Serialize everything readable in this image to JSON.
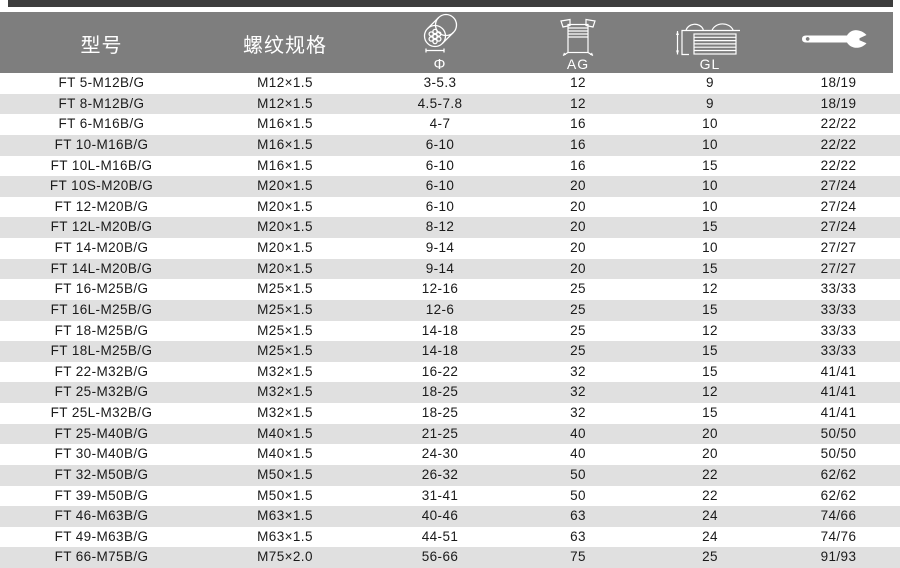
{
  "colors": {
    "header_bg": "#7e7e7e",
    "top_bar": "#3d3d3d",
    "stripe": "#e0e0e0",
    "row_text": "#1a1a1a",
    "header_text": "#ffffff"
  },
  "table": {
    "header": {
      "model": "型号",
      "thread": "螺纹规格",
      "clamp_symbol": "Φ",
      "ag": "AG",
      "gl": "GL",
      "icons": [
        "cable-diameter-icon",
        "gland-ag-icon",
        "gland-gl-icon",
        "wrench-icon"
      ]
    },
    "row_keys": [
      "model",
      "thread",
      "clamp",
      "ag",
      "gl",
      "wrench"
    ],
    "rows": [
      {
        "model": "FT 5-M12B/G",
        "thread": "M12×1.5",
        "clamp": "3-5.3",
        "ag": "12",
        "gl": "9",
        "wrench": "18/19"
      },
      {
        "model": "FT 8-M12B/G",
        "thread": "M12×1.5",
        "clamp": "4.5-7.8",
        "ag": "12",
        "gl": "9",
        "wrench": "18/19"
      },
      {
        "model": "FT 6-M16B/G",
        "thread": "M16×1.5",
        "clamp": "4-7",
        "ag": "16",
        "gl": "10",
        "wrench": "22/22"
      },
      {
        "model": "FT 10-M16B/G",
        "thread": "M16×1.5",
        "clamp": "6-10",
        "ag": "16",
        "gl": "10",
        "wrench": "22/22"
      },
      {
        "model": "FT 10L-M16B/G",
        "thread": "M16×1.5",
        "clamp": "6-10",
        "ag": "16",
        "gl": "15",
        "wrench": "22/22"
      },
      {
        "model": "FT 10S-M20B/G",
        "thread": "M20×1.5",
        "clamp": "6-10",
        "ag": "20",
        "gl": "10",
        "wrench": "27/24"
      },
      {
        "model": "FT 12-M20B/G",
        "thread": "M20×1.5",
        "clamp": "6-10",
        "ag": "20",
        "gl": "10",
        "wrench": "27/24"
      },
      {
        "model": "FT 12L-M20B/G",
        "thread": "M20×1.5",
        "clamp": "8-12",
        "ag": "20",
        "gl": "15",
        "wrench": "27/24"
      },
      {
        "model": "FT 14-M20B/G",
        "thread": "M20×1.5",
        "clamp": "9-14",
        "ag": "20",
        "gl": "10",
        "wrench": "27/27"
      },
      {
        "model": "FT 14L-M20B/G",
        "thread": "M20×1.5",
        "clamp": "9-14",
        "ag": "20",
        "gl": "15",
        "wrench": "27/27"
      },
      {
        "model": "FT 16-M25B/G",
        "thread": "M25×1.5",
        "clamp": "12-16",
        "ag": "25",
        "gl": "12",
        "wrench": "33/33"
      },
      {
        "model": "FT 16L-M25B/G",
        "thread": "M25×1.5",
        "clamp": "12-6",
        "ag": "25",
        "gl": "15",
        "wrench": "33/33"
      },
      {
        "model": "FT 18-M25B/G",
        "thread": "M25×1.5",
        "clamp": "14-18",
        "ag": "25",
        "gl": "12",
        "wrench": "33/33"
      },
      {
        "model": "FT 18L-M25B/G",
        "thread": "M25×1.5",
        "clamp": "14-18",
        "ag": "25",
        "gl": "15",
        "wrench": "33/33"
      },
      {
        "model": "FT 22-M32B/G",
        "thread": "M32×1.5",
        "clamp": "16-22",
        "ag": "32",
        "gl": "15",
        "wrench": "41/41"
      },
      {
        "model": "FT 25-M32B/G",
        "thread": "M32×1.5",
        "clamp": "18-25",
        "ag": "32",
        "gl": "12",
        "wrench": "41/41"
      },
      {
        "model": "FT 25L-M32B/G",
        "thread": "M32×1.5",
        "clamp": "18-25",
        "ag": "32",
        "gl": "15",
        "wrench": "41/41"
      },
      {
        "model": "FT 25-M40B/G",
        "thread": "M40×1.5",
        "clamp": "21-25",
        "ag": "40",
        "gl": "20",
        "wrench": "50/50"
      },
      {
        "model": "FT 30-M40B/G",
        "thread": "M40×1.5",
        "clamp": "24-30",
        "ag": "40",
        "gl": "20",
        "wrench": "50/50"
      },
      {
        "model": "FT 32-M50B/G",
        "thread": "M50×1.5",
        "clamp": "26-32",
        "ag": "50",
        "gl": "22",
        "wrench": "62/62"
      },
      {
        "model": "FT 39-M50B/G",
        "thread": "M50×1.5",
        "clamp": "31-41",
        "ag": "50",
        "gl": "22",
        "wrench": "62/62"
      },
      {
        "model": "FT 46-M63B/G",
        "thread": "M63×1.5",
        "clamp": "40-46",
        "ag": "63",
        "gl": "24",
        "wrench": "74/66"
      },
      {
        "model": "FT 49-M63B/G",
        "thread": "M63×1.5",
        "clamp": "44-51",
        "ag": "63",
        "gl": "24",
        "wrench": "74/76"
      },
      {
        "model": "FT 66-M75B/G",
        "thread": "M75×2.0",
        "clamp": "56-66",
        "ag": "75",
        "gl": "25",
        "wrench": "91/93"
      }
    ]
  }
}
